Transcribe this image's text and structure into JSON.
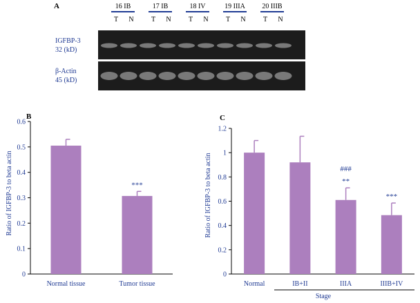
{
  "panel_a": {
    "letter": "A",
    "patients": [
      {
        "label": "16 IB"
      },
      {
        "label": "17 IB"
      },
      {
        "label": "18 IV"
      },
      {
        "label": "19 IIIA"
      },
      {
        "label": "20 IIIB"
      }
    ],
    "lane_labels": [
      "T",
      "N"
    ],
    "blots": [
      {
        "name": "IGFBP-3",
        "size": "32 (kD)"
      },
      {
        "name": "β-Actin",
        "size": "45 (kD)"
      }
    ]
  },
  "chart_data": [
    {
      "type": "bar",
      "panel": "B",
      "categories": [
        "Normal tissue",
        "Tumor tissue"
      ],
      "values": [
        0.505,
        0.307
      ],
      "errors": [
        0.025,
        0.018
      ],
      "annotations": [
        "",
        "***"
      ],
      "ylabel": "Ratio of IGFBP-3 to beta actin",
      "xlabel": "",
      "ylim": [
        0,
        0.6
      ],
      "yticks": [
        "0",
        "0.1",
        "0.2",
        "0.3",
        "0.4",
        "0.5",
        "0.6"
      ],
      "bar_color": "#ac7fbe"
    },
    {
      "type": "bar",
      "panel": "C",
      "categories": [
        "Normal",
        "IB+II",
        "IIIA",
        "IIIB+IV"
      ],
      "values": [
        1.0,
        0.92,
        0.61,
        0.485
      ],
      "errors": [
        0.1,
        0.215,
        0.1,
        0.1
      ],
      "annotations": [
        "",
        "",
        "**",
        "***"
      ],
      "annotations_upper": [
        "",
        "",
        "###",
        ""
      ],
      "ylabel": "Ratio of IGFBP-3 to beta actin",
      "xlabel": "Stage",
      "ylim": [
        0,
        1.2
      ],
      "yticks": [
        "0",
        "0.2",
        "0.4",
        "0.6",
        "0.8",
        "1",
        "1.2"
      ],
      "bar_color": "#ac7fbe"
    }
  ],
  "colors": {
    "label_text": "#1f3a93",
    "bar": "#ac7fbe",
    "blot_bg": "#1c1c1c"
  }
}
